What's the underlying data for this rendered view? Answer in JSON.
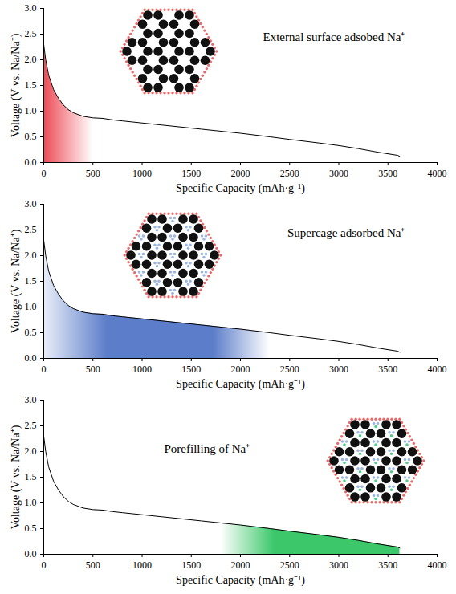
{
  "chart_data": [
    {
      "type": "line",
      "annotation": "External surface adsobed Na⁺",
      "xlabel": "Specific Capacity (mAh·g⁻¹)",
      "ylabel": "Voltage (V vs. Na/Na⁺)",
      "color": "#000000",
      "x": [
        0,
        20,
        50,
        100,
        150,
        200,
        250,
        300,
        400,
        500,
        600,
        700,
        800,
        900,
        1000,
        1200,
        1400,
        1600,
        1800,
        2000,
        2300,
        2500,
        2800,
        3000,
        3200,
        3400,
        3600,
        3620
      ],
      "values": [
        2.3,
        2.0,
        1.7,
        1.42,
        1.25,
        1.12,
        1.03,
        0.97,
        0.9,
        0.87,
        0.86,
        0.83,
        0.81,
        0.79,
        0.77,
        0.73,
        0.69,
        0.65,
        0.61,
        0.57,
        0.5,
        0.45,
        0.38,
        0.33,
        0.27,
        0.2,
        0.14,
        0.12
      ],
      "shade": {
        "from": 0,
        "to": 500,
        "color": "#ee4a55"
      },
      "xlim": [
        0,
        4000
      ],
      "xticks": [
        0,
        500,
        1000,
        1500,
        2000,
        2500,
        3000,
        3500,
        4000
      ],
      "ylim": [
        0,
        3.0
      ],
      "yticks": [
        {
          "value": 0,
          "label": "0.0"
        },
        {
          "value": 0.5,
          "label": "0.5"
        },
        {
          "value": 1.0,
          "label": "1.0"
        },
        {
          "value": 1.5,
          "label": "1.5"
        },
        {
          "value": 2.0,
          "label": "2.0"
        },
        {
          "value": 2.5,
          "label": "2.5"
        },
        {
          "value": 3.0,
          "label": "3.0"
        }
      ]
    },
    {
      "type": "line",
      "annotation": "Supercage adsorbed Na⁺",
      "xlabel": "Specific Capacity (mAh·g⁻¹)",
      "ylabel": "Voltage (V vs. Na/Na⁺)",
      "color": "#000000",
      "x": [
        0,
        20,
        50,
        100,
        150,
        200,
        250,
        300,
        400,
        500,
        600,
        700,
        800,
        900,
        1000,
        1200,
        1400,
        1600,
        1800,
        2000,
        2300,
        2500,
        2800,
        3000,
        3200,
        3400,
        3600,
        3620
      ],
      "values": [
        2.3,
        2.0,
        1.7,
        1.42,
        1.25,
        1.12,
        1.03,
        0.97,
        0.9,
        0.87,
        0.86,
        0.83,
        0.81,
        0.79,
        0.77,
        0.73,
        0.69,
        0.65,
        0.61,
        0.57,
        0.5,
        0.45,
        0.38,
        0.33,
        0.27,
        0.2,
        0.14,
        0.12
      ],
      "shade": {
        "from": 0,
        "to": 2300,
        "color": "#4a6fc4"
      },
      "xlim": [
        0,
        4000
      ],
      "xticks": [
        0,
        500,
        1000,
        1500,
        2000,
        2500,
        3000,
        3500,
        4000
      ],
      "ylim": [
        0,
        3.0
      ],
      "yticks": [
        {
          "value": 0,
          "label": "0.0"
        },
        {
          "value": 0.5,
          "label": "0.5"
        },
        {
          "value": 1.0,
          "label": "1.0"
        },
        {
          "value": 1.5,
          "label": "1.5"
        },
        {
          "value": 2.0,
          "label": "2.0"
        },
        {
          "value": 2.5,
          "label": "2.5"
        },
        {
          "value": 3.0,
          "label": "3.0"
        }
      ]
    },
    {
      "type": "line",
      "annotation": "Porefilling of Na⁺",
      "xlabel": "Specific Capacity (mAh·g⁻¹)",
      "ylabel": "Voltage (V vs. Na/Na⁺)",
      "color": "#000000",
      "x": [
        0,
        20,
        50,
        100,
        150,
        200,
        250,
        300,
        400,
        500,
        600,
        700,
        800,
        900,
        1000,
        1200,
        1400,
        1600,
        1800,
        2000,
        2300,
        2500,
        2800,
        3000,
        3200,
        3400,
        3600,
        3620
      ],
      "values": [
        2.3,
        2.0,
        1.7,
        1.42,
        1.25,
        1.12,
        1.03,
        0.97,
        0.9,
        0.87,
        0.86,
        0.83,
        0.81,
        0.79,
        0.77,
        0.73,
        0.69,
        0.65,
        0.61,
        0.57,
        0.5,
        0.45,
        0.38,
        0.33,
        0.27,
        0.2,
        0.14,
        0.12
      ],
      "shade": {
        "from": 1800,
        "to": 3620,
        "color": "#3cc86a"
      },
      "xlim": [
        0,
        4000
      ],
      "xticks": [
        0,
        500,
        1000,
        1500,
        2000,
        2500,
        3000,
        3500,
        4000
      ],
      "ylim": [
        0,
        3.0
      ],
      "yticks": [
        {
          "value": 0,
          "label": "0.0"
        },
        {
          "value": 0.5,
          "label": "0.5"
        },
        {
          "value": 1.0,
          "label": "1.0"
        },
        {
          "value": 1.5,
          "label": "1.5"
        },
        {
          "value": 2.0,
          "label": "2.0"
        },
        {
          "value": 2.5,
          "label": "2.5"
        },
        {
          "value": 3.0,
          "label": "3.0"
        }
      ]
    }
  ]
}
